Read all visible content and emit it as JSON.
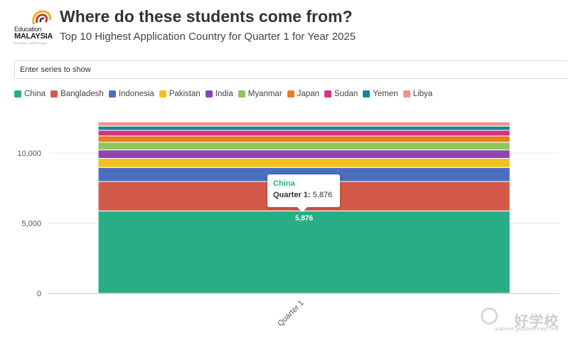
{
  "header": {
    "logo_line1": "Education",
    "logo_line2": "MALAYSIA",
    "logo_line3": "GLOBAL SERVICES",
    "title": "Where do these students come from?",
    "subtitle": "Top 10 Highest Application Country for Quarter 1 for Year 2025"
  },
  "series_filter": {
    "placeholder": "Enter series to show",
    "value": ""
  },
  "legend": {
    "items": [
      {
        "label": "China",
        "color": "#27ae85"
      },
      {
        "label": "Bangladesh",
        "color": "#d35a4a"
      },
      {
        "label": "Indonesia",
        "color": "#4a6fbf"
      },
      {
        "label": "Pakistan",
        "color": "#f2c21b"
      },
      {
        "label": "India",
        "color": "#8e44ad"
      },
      {
        "label": "Myanmar",
        "color": "#8cc65d"
      },
      {
        "label": "Japan",
        "color": "#e67e22"
      },
      {
        "label": "Sudan",
        "color": "#d63384"
      },
      {
        "label": "Yemen",
        "color": "#16879a"
      },
      {
        "label": "Libya",
        "color": "#f0928c"
      }
    ]
  },
  "chart_data": {
    "type": "bar",
    "stacked": true,
    "categories": [
      "Quarter 1"
    ],
    "series": [
      {
        "name": "China",
        "values": [
          5876
        ],
        "color": "#27ae85"
      },
      {
        "name": "Bangladesh",
        "values": [
          2100
        ],
        "color": "#d35a4a"
      },
      {
        "name": "Indonesia",
        "values": [
          1000
        ],
        "color": "#4a6fbf"
      },
      {
        "name": "Pakistan",
        "values": [
          650
        ],
        "color": "#f2c21b"
      },
      {
        "name": "India",
        "values": [
          600
        ],
        "color": "#8e44ad"
      },
      {
        "name": "Myanmar",
        "values": [
          550
        ],
        "color": "#8cc65d"
      },
      {
        "name": "Japan",
        "values": [
          450
        ],
        "color": "#e67e22"
      },
      {
        "name": "Sudan",
        "values": [
          400
        ],
        "color": "#d63384"
      },
      {
        "name": "Yemen",
        "values": [
          300
        ],
        "color": "#16879a"
      },
      {
        "name": "Libya",
        "values": [
          300
        ],
        "color": "#f0928c"
      }
    ],
    "y_ticks": [
      0,
      5000,
      10000
    ],
    "y_tick_labels": [
      "0",
      "5,000",
      "10,000"
    ],
    "ylim": [
      0,
      13000
    ],
    "data_label": "5,876",
    "grid": true,
    "legend_position": "top-left"
  },
  "tooltip": {
    "series_name": "China",
    "category_label": "Quarter 1:",
    "value": "5,876",
    "color": "#27ae85"
  },
  "watermark": {
    "text": "好学校",
    "url": "xiaoxue.goodxuexiao.com"
  }
}
